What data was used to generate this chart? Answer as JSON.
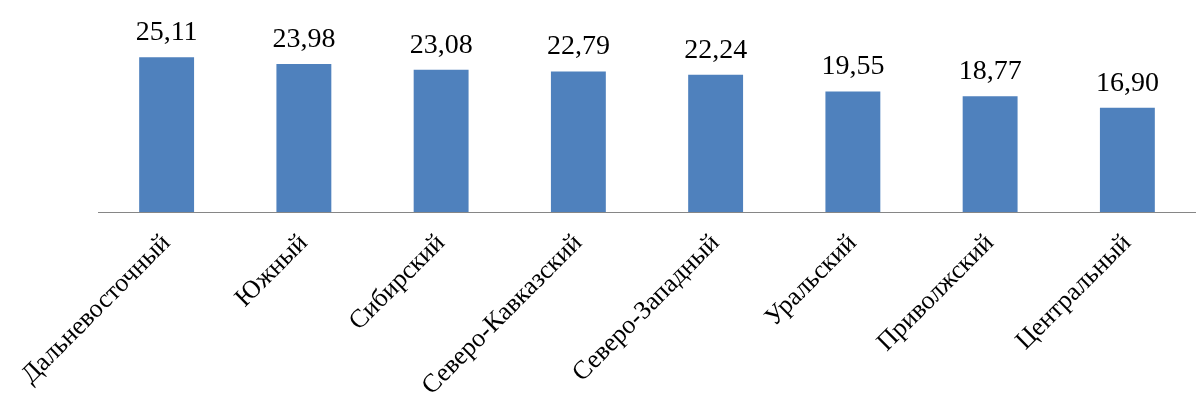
{
  "chart_data": {
    "type": "bar",
    "categories": [
      "Дальневосточный",
      "Южный",
      "Сибирский",
      "Северо-Кавказский",
      "Северо-Западный",
      "Уральский",
      "Приволжский",
      "Центральный"
    ],
    "values": [
      25.11,
      23.98,
      23.08,
      22.79,
      22.24,
      19.55,
      18.77,
      16.9
    ],
    "value_labels": [
      "25,11",
      "23,98",
      "23,08",
      "22,79",
      "22,24",
      "19,55",
      "18,77",
      "16,90"
    ],
    "color": "#4f81bd",
    "tick_labels": "x"
  }
}
